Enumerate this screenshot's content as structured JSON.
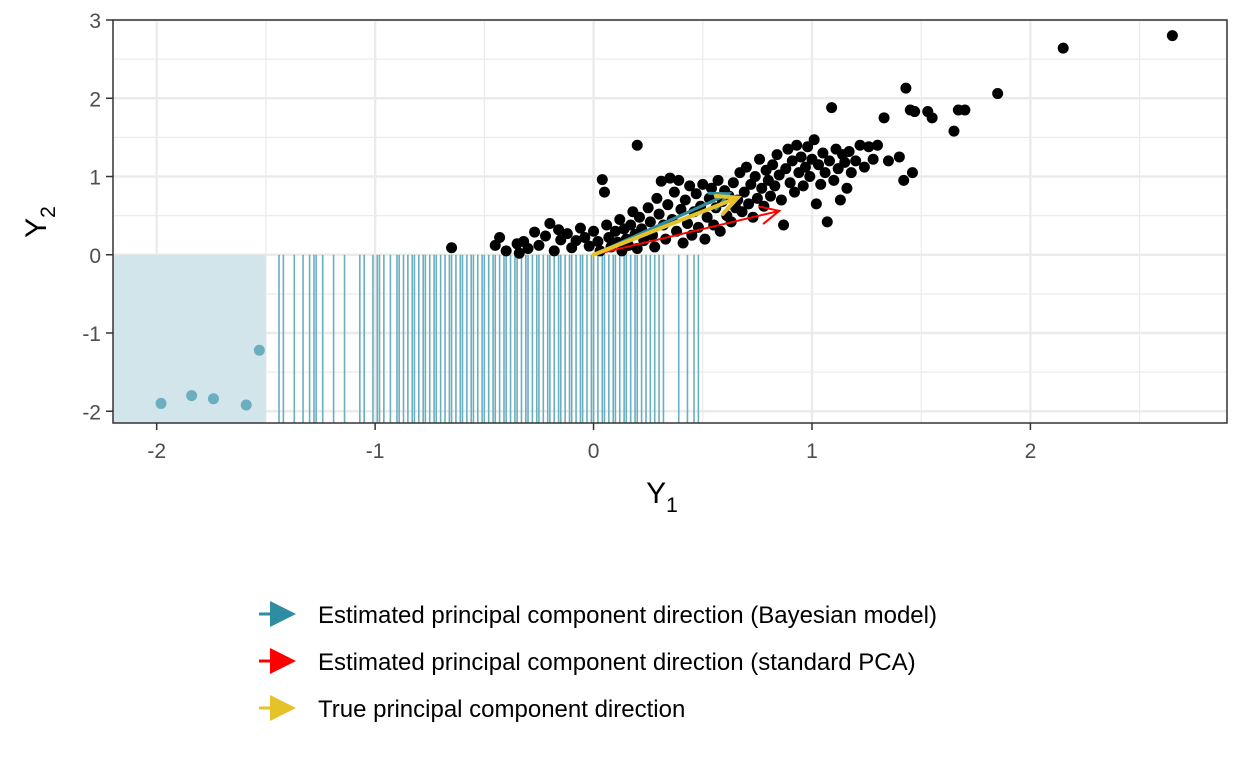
{
  "chart_data": {
    "type": "scatter",
    "xlabel": "Y",
    "xlabel_sub": "1",
    "ylabel": "Y",
    "ylabel_sub": "2",
    "xlim": [
      -2.2,
      2.9
    ],
    "ylim": [
      -2.15,
      3.0
    ],
    "x_ticks": [
      -2,
      -1,
      0,
      1,
      2
    ],
    "x_tick_labels": [
      "-2",
      "-1",
      "0",
      "1",
      "2"
    ],
    "y_ticks": [
      -2,
      -1,
      0,
      1,
      2,
      3
    ],
    "y_tick_labels": [
      "-2",
      "-1",
      "0",
      "1",
      "2",
      "3"
    ],
    "grid": true,
    "censored_region": {
      "x_max": -1.5,
      "y_max": 0,
      "color": "#d2e5eb"
    },
    "censored_points": [
      [
        -1.98,
        -1.9
      ],
      [
        -1.84,
        -1.8
      ],
      [
        -1.74,
        -1.84
      ],
      [
        -1.59,
        -1.92
      ],
      [
        -1.53,
        -1.22
      ]
    ],
    "censored_x_values": [
      -1.44,
      -1.42,
      -1.37,
      -1.33,
      -1.3,
      -1.28,
      -1.27,
      -1.24,
      -1.19,
      -1.14,
      -1.07,
      -1.05,
      -1.01,
      -0.99,
      -0.98,
      -0.96,
      -0.93,
      -0.9,
      -0.89,
      -0.87,
      -0.85,
      -0.83,
      -0.82,
      -0.8,
      -0.78,
      -0.77,
      -0.75,
      -0.73,
      -0.72,
      -0.7,
      -0.68,
      -0.66,
      -0.65,
      -0.63,
      -0.61,
      -0.6,
      -0.58,
      -0.56,
      -0.55,
      -0.53,
      -0.51,
      -0.5,
      -0.48,
      -0.46,
      -0.45,
      -0.43,
      -0.41,
      -0.4,
      -0.38,
      -0.36,
      -0.35,
      -0.33,
      -0.31,
      -0.3,
      -0.28,
      -0.26,
      -0.25,
      -0.23,
      -0.21,
      -0.2,
      -0.18,
      -0.16,
      -0.15,
      -0.13,
      -0.11,
      -0.1,
      -0.08,
      -0.06,
      -0.05,
      -0.03,
      -0.01,
      0.0,
      0.02,
      0.04,
      0.05,
      0.07,
      0.09,
      0.1,
      0.12,
      0.14,
      0.15,
      0.17,
      0.19,
      0.2,
      0.22,
      0.24,
      0.26,
      0.28,
      0.3,
      0.32,
      0.39,
      0.43,
      0.46,
      0.48
    ],
    "observed_points": [
      [
        -0.65,
        0.09
      ],
      [
        -0.45,
        0.12
      ],
      [
        -0.43,
        0.22
      ],
      [
        -0.4,
        0.05
      ],
      [
        -0.35,
        0.14
      ],
      [
        -0.34,
        0.02
      ],
      [
        -0.32,
        0.17
      ],
      [
        -0.3,
        0.08
      ],
      [
        -0.27,
        0.29
      ],
      [
        -0.25,
        0.12
      ],
      [
        -0.22,
        0.24
      ],
      [
        -0.2,
        0.4
      ],
      [
        -0.18,
        0.05
      ],
      [
        -0.16,
        0.32
      ],
      [
        -0.15,
        0.19
      ],
      [
        -0.12,
        0.27
      ],
      [
        -0.1,
        0.09
      ],
      [
        -0.08,
        0.18
      ],
      [
        -0.06,
        0.34
      ],
      [
        -0.04,
        0.22
      ],
      [
        -0.02,
        0.11
      ],
      [
        0.0,
        0.3
      ],
      [
        0.02,
        0.17
      ],
      [
        0.03,
        0.05
      ],
      [
        0.04,
        0.96
      ],
      [
        0.05,
        0.8
      ],
      [
        0.06,
        0.38
      ],
      [
        0.07,
        0.22
      ],
      [
        0.08,
        0.1
      ],
      [
        0.1,
        0.3
      ],
      [
        0.11,
        0.16
      ],
      [
        0.12,
        0.45
      ],
      [
        0.13,
        0.05
      ],
      [
        0.14,
        0.33
      ],
      [
        0.15,
        0.2
      ],
      [
        0.16,
        0.12
      ],
      [
        0.17,
        0.38
      ],
      [
        0.18,
        0.55
      ],
      [
        0.19,
        0.26
      ],
      [
        0.2,
        1.4
      ],
      [
        0.2,
        0.08
      ],
      [
        0.21,
        0.48
      ],
      [
        0.22,
        0.33
      ],
      [
        0.23,
        0.18
      ],
      [
        0.25,
        0.6
      ],
      [
        0.26,
        0.42
      ],
      [
        0.27,
        0.25
      ],
      [
        0.28,
        0.1
      ],
      [
        0.29,
        0.72
      ],
      [
        0.3,
        0.52
      ],
      [
        0.31,
        0.94
      ],
      [
        0.32,
        0.38
      ],
      [
        0.33,
        0.2
      ],
      [
        0.34,
        0.64
      ],
      [
        0.35,
        0.98
      ],
      [
        0.36,
        0.45
      ],
      [
        0.37,
        0.8
      ],
      [
        0.38,
        0.3
      ],
      [
        0.39,
        0.95
      ],
      [
        0.4,
        0.58
      ],
      [
        0.41,
        0.15
      ],
      [
        0.42,
        0.7
      ],
      [
        0.43,
        0.4
      ],
      [
        0.44,
        0.88
      ],
      [
        0.45,
        0.25
      ],
      [
        0.46,
        0.55
      ],
      [
        0.47,
        0.78
      ],
      [
        0.48,
        0.35
      ],
      [
        0.49,
        0.62
      ],
      [
        0.5,
        0.9
      ],
      [
        0.51,
        0.2
      ],
      [
        0.52,
        0.48
      ],
      [
        0.53,
        0.72
      ],
      [
        0.54,
        0.85
      ],
      [
        0.55,
        0.38
      ],
      [
        0.56,
        0.6
      ],
      [
        0.57,
        0.95
      ],
      [
        0.58,
        0.3
      ],
      [
        0.59,
        0.68
      ],
      [
        0.6,
        0.82
      ],
      [
        0.61,
        0.5
      ],
      [
        0.62,
        0.75
      ],
      [
        0.63,
        0.42
      ],
      [
        0.64,
        0.92
      ],
      [
        0.65,
        0.6
      ],
      [
        0.66,
        0.7
      ],
      [
        0.67,
        1.05
      ],
      [
        0.68,
        0.55
      ],
      [
        0.69,
        0.8
      ],
      [
        0.7,
        1.12
      ],
      [
        0.71,
        0.65
      ],
      [
        0.72,
        0.9
      ],
      [
        0.73,
        0.48
      ],
      [
        0.74,
        1.0
      ],
      [
        0.75,
        0.72
      ],
      [
        0.76,
        1.22
      ],
      [
        0.77,
        0.85
      ],
      [
        0.78,
        0.62
      ],
      [
        0.79,
        1.08
      ],
      [
        0.8,
        0.95
      ],
      [
        0.81,
        0.75
      ],
      [
        0.82,
        1.15
      ],
      [
        0.83,
        0.88
      ],
      [
        0.84,
        1.28
      ],
      [
        0.85,
        1.02
      ],
      [
        0.86,
        0.7
      ],
      [
        0.87,
        0.38
      ],
      [
        0.88,
        1.1
      ],
      [
        0.89,
        1.35
      ],
      [
        0.9,
        0.92
      ],
      [
        0.91,
        1.2
      ],
      [
        0.92,
        0.8
      ],
      [
        0.93,
        1.4
      ],
      [
        0.94,
        1.05
      ],
      [
        0.95,
        1.25
      ],
      [
        0.96,
        0.88
      ],
      [
        0.97,
        1.12
      ],
      [
        0.98,
        1.38
      ],
      [
        0.99,
        1.0
      ],
      [
        1.0,
        1.22
      ],
      [
        1.01,
        1.47
      ],
      [
        1.02,
        0.65
      ],
      [
        1.03,
        1.15
      ],
      [
        1.04,
        0.9
      ],
      [
        1.05,
        1.3
      ],
      [
        1.06,
        1.05
      ],
      [
        1.07,
        0.42
      ],
      [
        1.08,
        1.2
      ],
      [
        1.09,
        1.88
      ],
      [
        1.1,
        0.95
      ],
      [
        1.11,
        1.35
      ],
      [
        1.12,
        1.1
      ],
      [
        1.13,
        0.7
      ],
      [
        1.14,
        1.28
      ],
      [
        1.15,
        1.18
      ],
      [
        1.16,
        0.85
      ],
      [
        1.17,
        1.32
      ],
      [
        1.18,
        1.05
      ],
      [
        1.2,
        1.2
      ],
      [
        1.22,
        1.4
      ],
      [
        1.24,
        1.12
      ],
      [
        1.26,
        1.38
      ],
      [
        1.28,
        1.22
      ],
      [
        1.3,
        1.4
      ],
      [
        1.33,
        1.75
      ],
      [
        1.35,
        1.2
      ],
      [
        1.4,
        1.25
      ],
      [
        1.42,
        0.95
      ],
      [
        1.43,
        2.13
      ],
      [
        1.45,
        1.85
      ],
      [
        1.46,
        1.05
      ],
      [
        1.47,
        1.83
      ],
      [
        1.53,
        1.83
      ],
      [
        1.55,
        1.75
      ],
      [
        1.65,
        1.58
      ],
      [
        1.67,
        1.85
      ],
      [
        1.7,
        1.85
      ],
      [
        1.85,
        2.06
      ],
      [
        2.15,
        2.64
      ],
      [
        2.65,
        2.8
      ]
    ],
    "arrows": [
      {
        "name": "Estimated principal component direction (Bayesian model)",
        "color": "#2e8ca3",
        "from": [
          0,
          0
        ],
        "to": [
          0.62,
          0.78
        ]
      },
      {
        "name": "Estimated principal component direction (standard PCA)",
        "color": "#ff0000",
        "from": [
          0,
          0
        ],
        "to": [
          0.85,
          0.56
        ]
      },
      {
        "name": "True principal component direction",
        "color": "#e6c229",
        "from": [
          0,
          0
        ],
        "to": [
          0.66,
          0.73
        ]
      }
    ],
    "legend_placement": "bottom",
    "colors": {
      "observed": "#000000",
      "censored": "#6aaec0",
      "grid": "#ebebeb",
      "panel_border": "#333333"
    }
  }
}
